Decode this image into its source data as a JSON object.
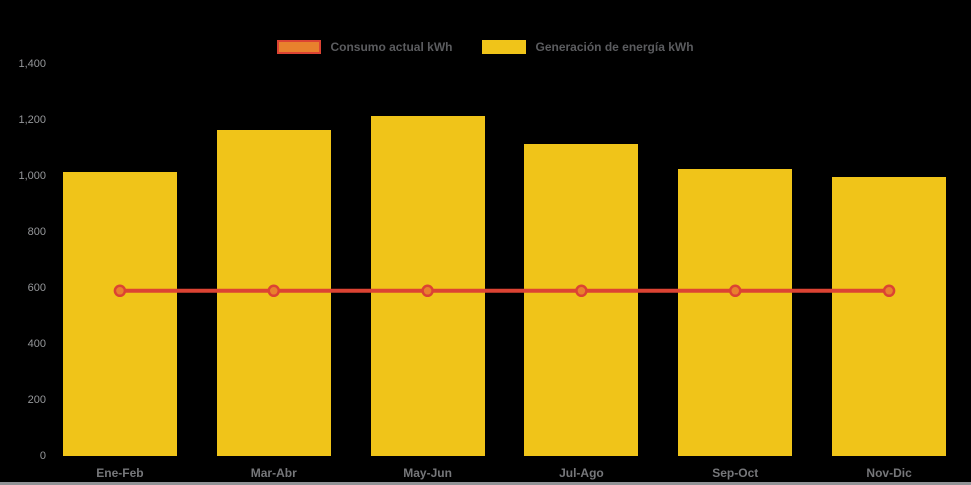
{
  "background_color": "#000000",
  "legend": {
    "items": [
      {
        "label": "Consumo actual kWh",
        "swatch_fill": "#E8812D",
        "swatch_border": "#DC4333",
        "series_type": "line"
      },
      {
        "label": "Generación de energía kWh",
        "swatch_fill": "#F0C419",
        "swatch_border": "",
        "series_type": "bar"
      }
    ]
  },
  "chart_data": {
    "type": "bar",
    "subtype": "bar-with-line-overlay",
    "title": "",
    "xlabel": "",
    "ylabel": "",
    "categories": [
      "Ene-Feb",
      "Mar-Abr",
      "May-Jun",
      "Jul-Ago",
      "Sep-Oct",
      "Nov-Dic"
    ],
    "series": [
      {
        "name": "Generación de energía kWh",
        "type": "bar",
        "color": "#F0C419",
        "values": [
          1015,
          1165,
          1215,
          1115,
          1025,
          995
        ]
      },
      {
        "name": "Consumo actual kWh",
        "type": "line",
        "color": "#DC4333",
        "marker_fill": "#E8812D",
        "marker_stroke": "#DC4333",
        "values": [
          590,
          590,
          590,
          590,
          590,
          590
        ]
      }
    ],
    "ylim": [
      0,
      1400
    ],
    "ytick_step": 200,
    "ytick_labels": [
      "0",
      "200",
      "400",
      "600",
      "800",
      "1,000",
      "1,200",
      "1,400"
    ],
    "grid": false,
    "legend_position": "top-center"
  },
  "colors": {
    "bar_yellow": "#F0C419",
    "line_red": "#DC4333",
    "marker_orange": "#E8812D",
    "legend_text": "#5B5C5F",
    "y_tick_text": "#95979A",
    "x_tick_text": "#76777A",
    "bottom_strip": "#919396",
    "background": "#000000"
  }
}
